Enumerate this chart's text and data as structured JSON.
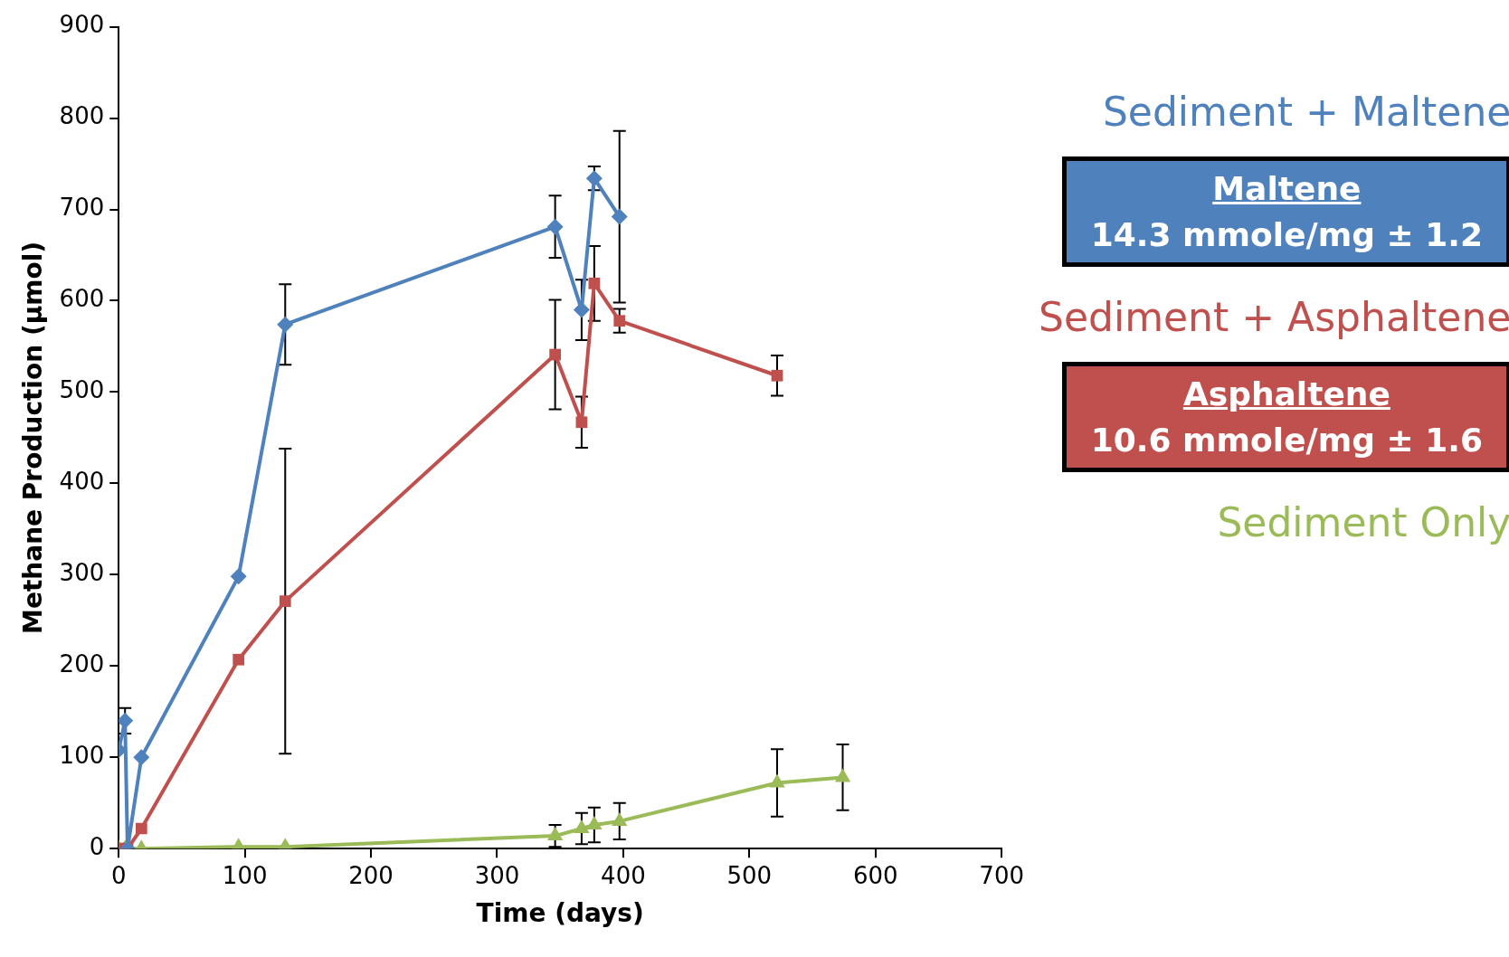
{
  "chart_data": {
    "type": "line",
    "xlabel": "Time (days)",
    "ylabel": "Methane Production (µmol)",
    "xlim": [
      0,
      700
    ],
    "xticks": [
      0,
      100,
      200,
      300,
      400,
      500,
      600,
      700
    ],
    "ylim": [
      0,
      900
    ],
    "yticks": [
      0,
      100,
      200,
      300,
      400,
      500,
      600,
      700,
      800,
      900
    ],
    "series": [
      {
        "name": "Sediment + Maltene",
        "color": "#4f81bd",
        "marker": "diamond",
        "x": [
          0,
          5,
          7,
          18,
          95,
          132,
          346,
          367,
          377,
          397
        ],
        "values": [
          108,
          140,
          0,
          100,
          298,
          574,
          681,
          590,
          734,
          692
        ],
        "errors": [
          null,
          14,
          null,
          null,
          null,
          44,
          34,
          33,
          13,
          94
        ]
      },
      {
        "name": "Sediment + Asphaltene",
        "color": "#c0504d",
        "marker": "square",
        "x": [
          0,
          7,
          18,
          95,
          132,
          346,
          367,
          377,
          397,
          522
        ],
        "values": [
          0,
          0,
          22,
          207,
          271,
          541,
          467,
          619,
          578,
          518
        ],
        "errors": [
          null,
          null,
          null,
          null,
          167,
          60,
          28,
          41,
          13,
          22
        ]
      },
      {
        "name": "Sediment Only",
        "color": "#9bbb59",
        "marker": "triangle",
        "x": [
          0,
          5,
          18,
          95,
          132,
          346,
          367,
          377,
          397,
          522,
          574
        ],
        "values": [
          0,
          0,
          0,
          2,
          2,
          14,
          22,
          26,
          30,
          72,
          78
        ],
        "errors": [
          null,
          null,
          null,
          null,
          null,
          12,
          17,
          19,
          20,
          37,
          36
        ]
      }
    ],
    "annotations": [
      "Maltene",
      "14.3 mmole/mg ± 1.2",
      "Asphaltene",
      "10.6 mmole/mg ± 1.6"
    ]
  }
}
